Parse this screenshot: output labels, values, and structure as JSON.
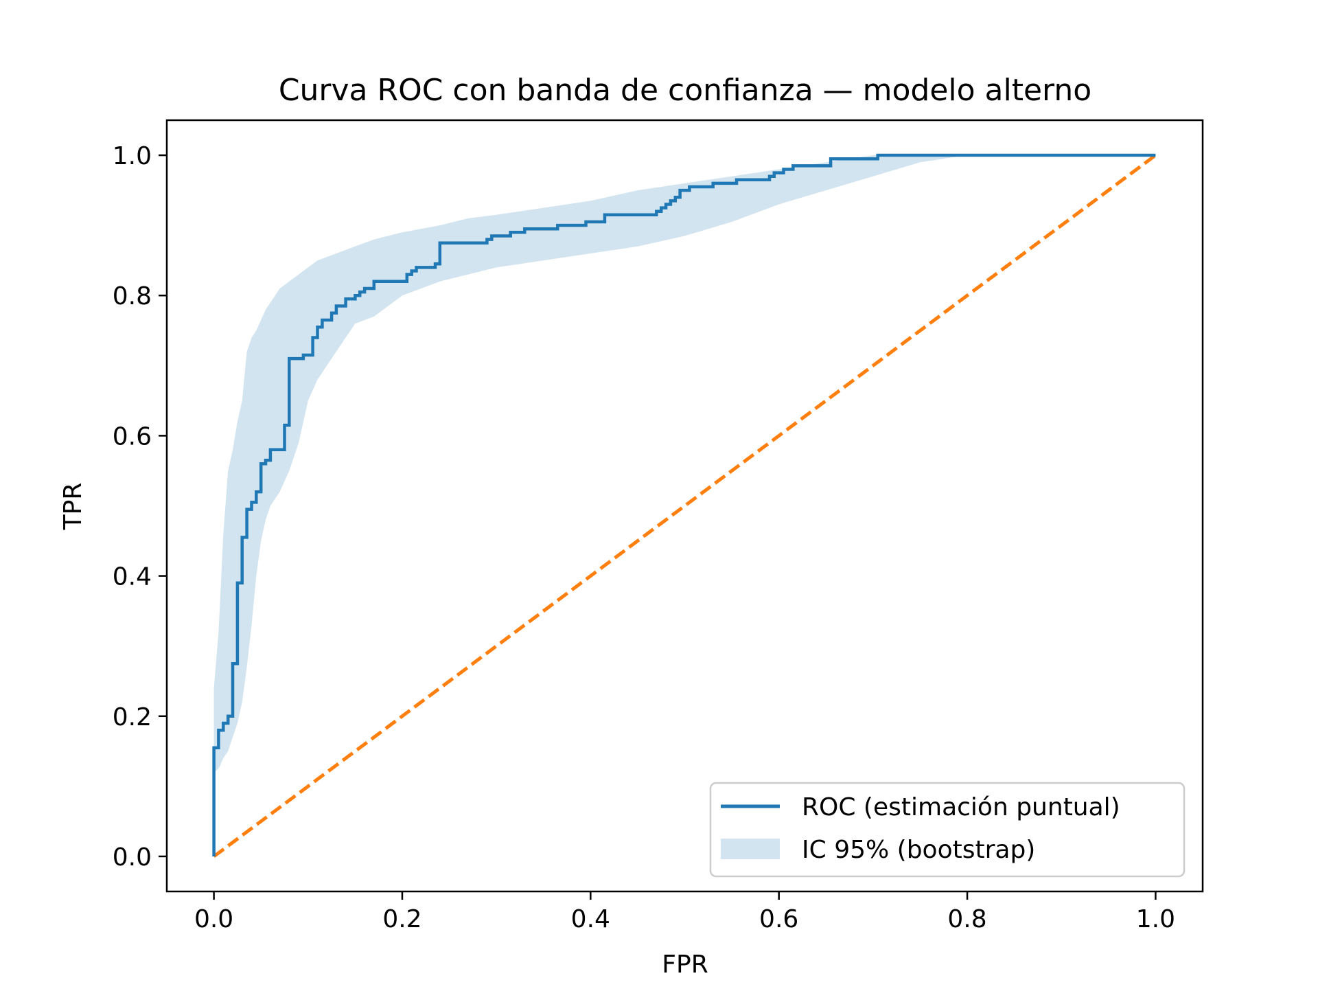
{
  "chart_data": {
    "type": "line",
    "title": "Curva ROC con banda de confianza — modelo alterno",
    "xlabel": "FPR",
    "ylabel": "TPR",
    "xlim": [
      -0.05,
      1.05
    ],
    "ylim": [
      -0.05,
      1.05
    ],
    "xticks": [
      0.0,
      0.2,
      0.4,
      0.6,
      0.8,
      1.0
    ],
    "xtick_labels": [
      "0.0",
      "0.2",
      "0.4",
      "0.6",
      "0.8",
      "1.0"
    ],
    "yticks": [
      0.0,
      0.2,
      0.4,
      0.6,
      0.8,
      1.0
    ],
    "ytick_labels": [
      "0.0",
      "0.2",
      "0.4",
      "0.6",
      "0.8",
      "1.0"
    ],
    "grid": false,
    "legend_position": "lower-right",
    "colors": {
      "roc": "#1f77b4",
      "band": "#1f77b4",
      "diagonal": "#ff7f0e"
    },
    "series": [
      {
        "name": "ROC (estimación puntual)",
        "kind": "step",
        "points": [
          [
            0.0,
            0.0
          ],
          [
            0.0,
            0.155
          ],
          [
            0.005,
            0.155
          ],
          [
            0.005,
            0.18
          ],
          [
            0.01,
            0.18
          ],
          [
            0.01,
            0.19
          ],
          [
            0.015,
            0.19
          ],
          [
            0.015,
            0.2
          ],
          [
            0.02,
            0.2
          ],
          [
            0.02,
            0.275
          ],
          [
            0.025,
            0.275
          ],
          [
            0.025,
            0.39
          ],
          [
            0.03,
            0.39
          ],
          [
            0.03,
            0.455
          ],
          [
            0.035,
            0.455
          ],
          [
            0.035,
            0.495
          ],
          [
            0.04,
            0.495
          ],
          [
            0.04,
            0.505
          ],
          [
            0.045,
            0.505
          ],
          [
            0.045,
            0.52
          ],
          [
            0.05,
            0.52
          ],
          [
            0.05,
            0.56
          ],
          [
            0.055,
            0.56
          ],
          [
            0.055,
            0.565
          ],
          [
            0.06,
            0.565
          ],
          [
            0.06,
            0.58
          ],
          [
            0.075,
            0.58
          ],
          [
            0.075,
            0.615
          ],
          [
            0.08,
            0.615
          ],
          [
            0.08,
            0.71
          ],
          [
            0.095,
            0.71
          ],
          [
            0.095,
            0.715
          ],
          [
            0.105,
            0.715
          ],
          [
            0.105,
            0.74
          ],
          [
            0.11,
            0.74
          ],
          [
            0.11,
            0.755
          ],
          [
            0.115,
            0.755
          ],
          [
            0.115,
            0.765
          ],
          [
            0.125,
            0.765
          ],
          [
            0.125,
            0.775
          ],
          [
            0.13,
            0.775
          ],
          [
            0.13,
            0.785
          ],
          [
            0.14,
            0.785
          ],
          [
            0.14,
            0.795
          ],
          [
            0.15,
            0.795
          ],
          [
            0.15,
            0.8
          ],
          [
            0.155,
            0.8
          ],
          [
            0.155,
            0.805
          ],
          [
            0.16,
            0.805
          ],
          [
            0.16,
            0.81
          ],
          [
            0.17,
            0.81
          ],
          [
            0.17,
            0.82
          ],
          [
            0.205,
            0.82
          ],
          [
            0.205,
            0.83
          ],
          [
            0.21,
            0.83
          ],
          [
            0.21,
            0.835
          ],
          [
            0.215,
            0.835
          ],
          [
            0.215,
            0.84
          ],
          [
            0.235,
            0.84
          ],
          [
            0.235,
            0.845
          ],
          [
            0.24,
            0.845
          ],
          [
            0.24,
            0.875
          ],
          [
            0.29,
            0.875
          ],
          [
            0.29,
            0.88
          ],
          [
            0.295,
            0.88
          ],
          [
            0.295,
            0.885
          ],
          [
            0.315,
            0.885
          ],
          [
            0.315,
            0.89
          ],
          [
            0.33,
            0.89
          ],
          [
            0.33,
            0.895
          ],
          [
            0.365,
            0.895
          ],
          [
            0.365,
            0.9
          ],
          [
            0.395,
            0.9
          ],
          [
            0.395,
            0.905
          ],
          [
            0.415,
            0.905
          ],
          [
            0.415,
            0.915
          ],
          [
            0.47,
            0.915
          ],
          [
            0.47,
            0.92
          ],
          [
            0.475,
            0.92
          ],
          [
            0.475,
            0.925
          ],
          [
            0.48,
            0.925
          ],
          [
            0.48,
            0.93
          ],
          [
            0.485,
            0.93
          ],
          [
            0.485,
            0.935
          ],
          [
            0.49,
            0.935
          ],
          [
            0.49,
            0.94
          ],
          [
            0.495,
            0.94
          ],
          [
            0.495,
            0.95
          ],
          [
            0.505,
            0.95
          ],
          [
            0.505,
            0.955
          ],
          [
            0.53,
            0.955
          ],
          [
            0.53,
            0.96
          ],
          [
            0.555,
            0.96
          ],
          [
            0.555,
            0.965
          ],
          [
            0.59,
            0.965
          ],
          [
            0.59,
            0.97
          ],
          [
            0.595,
            0.97
          ],
          [
            0.595,
            0.975
          ],
          [
            0.605,
            0.975
          ],
          [
            0.605,
            0.98
          ],
          [
            0.615,
            0.98
          ],
          [
            0.615,
            0.985
          ],
          [
            0.655,
            0.985
          ],
          [
            0.655,
            0.995
          ],
          [
            0.705,
            0.995
          ],
          [
            0.705,
            1.0
          ],
          [
            1.0,
            1.0
          ]
        ]
      },
      {
        "name": "IC 95% (bootstrap)",
        "kind": "band",
        "x": [
          0.0,
          0.005,
          0.01,
          0.015,
          0.02,
          0.025,
          0.03,
          0.035,
          0.04,
          0.045,
          0.05,
          0.055,
          0.06,
          0.07,
          0.08,
          0.09,
          0.1,
          0.11,
          0.12,
          0.13,
          0.14,
          0.15,
          0.17,
          0.2,
          0.24,
          0.27,
          0.3,
          0.35,
          0.4,
          0.45,
          0.5,
          0.55,
          0.6,
          0.65,
          0.7,
          0.75,
          0.8,
          1.0
        ],
        "upper": [
          0.24,
          0.32,
          0.46,
          0.55,
          0.58,
          0.62,
          0.65,
          0.72,
          0.74,
          0.75,
          0.765,
          0.78,
          0.79,
          0.81,
          0.82,
          0.83,
          0.84,
          0.85,
          0.855,
          0.86,
          0.865,
          0.87,
          0.88,
          0.89,
          0.9,
          0.91,
          0.915,
          0.925,
          0.935,
          0.95,
          0.96,
          0.97,
          0.98,
          0.99,
          1.0,
          1.0,
          1.0,
          1.0
        ],
        "lower": [
          0.12,
          0.125,
          0.14,
          0.15,
          0.17,
          0.19,
          0.22,
          0.27,
          0.33,
          0.4,
          0.45,
          0.48,
          0.5,
          0.52,
          0.55,
          0.59,
          0.65,
          0.68,
          0.7,
          0.72,
          0.74,
          0.76,
          0.77,
          0.8,
          0.82,
          0.83,
          0.84,
          0.85,
          0.86,
          0.87,
          0.885,
          0.905,
          0.93,
          0.95,
          0.97,
          0.99,
          1.0,
          1.0
        ]
      },
      {
        "name": "",
        "kind": "diagonal",
        "points": [
          [
            0.0,
            0.0
          ],
          [
            1.0,
            1.0
          ]
        ]
      }
    ],
    "legend": [
      {
        "label": "ROC (estimación puntual)",
        "swatch": "line"
      },
      {
        "label": "IC 95% (bootstrap)",
        "swatch": "patch"
      }
    ]
  }
}
